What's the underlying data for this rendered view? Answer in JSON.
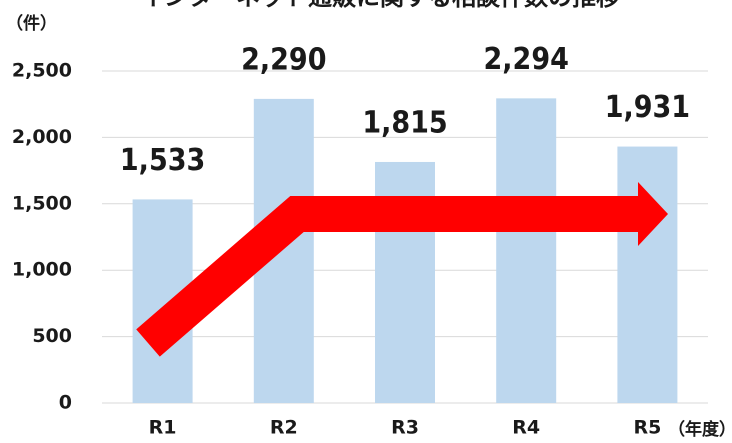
{
  "chart_data": {
    "type": "bar",
    "title": "インターネット通販に関する相談件数の推移",
    "y_unit": "（件）",
    "x_unit": "（年度）",
    "categories": [
      "R1",
      "R2",
      "R3",
      "R4",
      "R5"
    ],
    "values": [
      1533,
      2290,
      1815,
      2294,
      1931
    ],
    "value_labels": [
      "1,533",
      "2,290",
      "1,815",
      "2,294",
      "1,931"
    ],
    "color": "#bdd7ee",
    "ylim": [
      0,
      2500
    ],
    "yticks": [
      0,
      500,
      {
        "value": 1000,
        "label": "1,000"
      },
      {
        "value": 1500,
        "label": "1,500"
      },
      {
        "value": 2000,
        "label": "2,000"
      },
      {
        "value": 2500,
        "label": "2,500"
      }
    ],
    "grid": true
  }
}
